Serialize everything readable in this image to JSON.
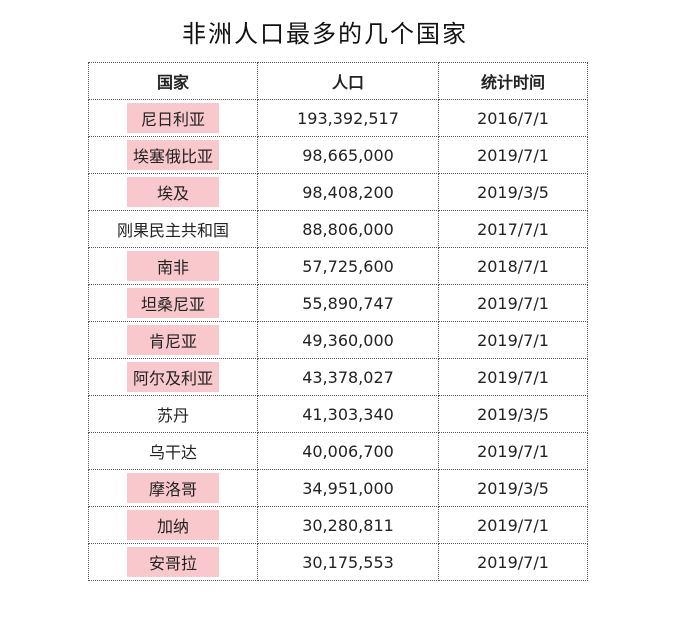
{
  "title": "非洲人口最多的几个国家",
  "highlight_color": "#f8c8cc",
  "columns": [
    "国家",
    "人口",
    "统计时间"
  ],
  "rows": [
    {
      "country": "尼日利亚",
      "population": "193,392,517",
      "date": "2016/7/1",
      "highlighted": true
    },
    {
      "country": "埃塞俄比亚",
      "population": "98,665,000",
      "date": "2019/7/1",
      "highlighted": true
    },
    {
      "country": "埃及",
      "population": "98,408,200",
      "date": "2019/3/5",
      "highlighted": true
    },
    {
      "country": "刚果民主共和国",
      "population": "88,806,000",
      "date": "2017/7/1",
      "highlighted": false
    },
    {
      "country": "南非",
      "population": "57,725,600",
      "date": "2018/7/1",
      "highlighted": true
    },
    {
      "country": "坦桑尼亚",
      "population": "55,890,747",
      "date": "2019/7/1",
      "highlighted": true
    },
    {
      "country": "肯尼亚",
      "population": "49,360,000",
      "date": "2019/7/1",
      "highlighted": true
    },
    {
      "country": "阿尔及利亚",
      "population": "43,378,027",
      "date": "2019/7/1",
      "highlighted": true
    },
    {
      "country": "苏丹",
      "population": "41,303,340",
      "date": "2019/3/5",
      "highlighted": false
    },
    {
      "country": "乌干达",
      "population": "40,006,700",
      "date": "2019/7/1",
      "highlighted": false
    },
    {
      "country": "摩洛哥",
      "population": "34,951,000",
      "date": "2019/3/5",
      "highlighted": true
    },
    {
      "country": "加纳",
      "population": "30,280,811",
      "date": "2019/7/1",
      "highlighted": true
    },
    {
      "country": "安哥拉",
      "population": "30,175,553",
      "date": "2019/7/1",
      "highlighted": true
    }
  ]
}
